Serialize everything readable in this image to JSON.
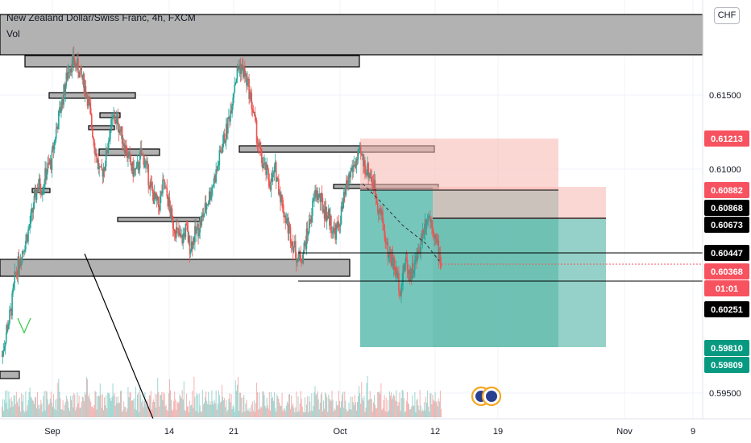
{
  "legend": {
    "title": "New Zealand Dollar/Swiss Franc, 4h, FXCM",
    "volume_label": "Vol"
  },
  "currency_button": "CHF",
  "chart_data": {
    "type": "candlestick",
    "symbol": "NZDCHF",
    "interval": "4h",
    "ylim": [
      0.5937,
      0.6218
    ],
    "price_ticks": [
      "0.61500",
      "0.61000",
      "0.59500"
    ],
    "x_ticks": [
      "Sep",
      "14",
      "21",
      "Oct",
      "12",
      "19",
      "Nov",
      "9"
    ],
    "price_labels": [
      {
        "text": "0.61213",
        "bg": "#f7525f",
        "fg": "#ffffff"
      },
      {
        "text": "0.60882",
        "bg": "#f7525f",
        "fg": "#ffffff"
      },
      {
        "text": "0.60868",
        "bg": "#000000",
        "fg": "#ffffff"
      },
      {
        "text": "0.60673",
        "bg": "#000000",
        "fg": "#ffffff"
      },
      {
        "text": "0.60447",
        "bg": "#000000",
        "fg": "#ffffff"
      },
      {
        "text": "0.60368",
        "bg": "#f7525f",
        "fg": "#ffffff"
      },
      {
        "text": "01:01",
        "bg": "#f7525f",
        "fg": "#ffffff"
      },
      {
        "text": "0.60251",
        "bg": "#000000",
        "fg": "#ffffff"
      },
      {
        "text": "0.59810",
        "bg": "#089981",
        "fg": "#ffffff"
      },
      {
        "text": "0.59809",
        "bg": "#089981",
        "fg": "#ffffff"
      }
    ],
    "price_path": [
      0.5975,
      0.5992,
      0.6005,
      0.603,
      0.604,
      0.605,
      0.606,
      0.6075,
      0.609,
      0.6088,
      0.61,
      0.6105,
      0.6125,
      0.614,
      0.6155,
      0.617,
      0.6172,
      0.6168,
      0.616,
      0.615,
      0.613,
      0.611,
      0.6095,
      0.6105,
      0.6125,
      0.6135,
      0.613,
      0.612,
      0.611,
      0.61,
      0.6098,
      0.611,
      0.6105,
      0.609,
      0.608,
      0.6075,
      0.609,
      0.608,
      0.6065,
      0.6058,
      0.6052,
      0.606,
      0.6048,
      0.6056,
      0.6062,
      0.607,
      0.608,
      0.609,
      0.61,
      0.6115,
      0.6125,
      0.614,
      0.616,
      0.617,
      0.6165,
      0.6155,
      0.614,
      0.612,
      0.6105,
      0.6098,
      0.609,
      0.61,
      0.6085,
      0.607,
      0.606,
      0.605,
      0.604,
      0.6042,
      0.6055,
      0.607,
      0.6085,
      0.608,
      0.6072,
      0.6068,
      0.6058,
      0.606,
      0.6075,
      0.609,
      0.61,
      0.6105,
      0.611,
      0.6102,
      0.6098,
      0.609,
      0.6075,
      0.6065,
      0.6045,
      0.604,
      0.603,
      0.602,
      0.604,
      0.603,
      0.6035,
      0.6045,
      0.606,
      0.607,
      0.6065,
      0.605,
      0.6037
    ],
    "colors": {
      "up": "#26a69a",
      "down": "#ef5350",
      "axis_text": "#131722",
      "grid": "#f0f3fa"
    }
  }
}
